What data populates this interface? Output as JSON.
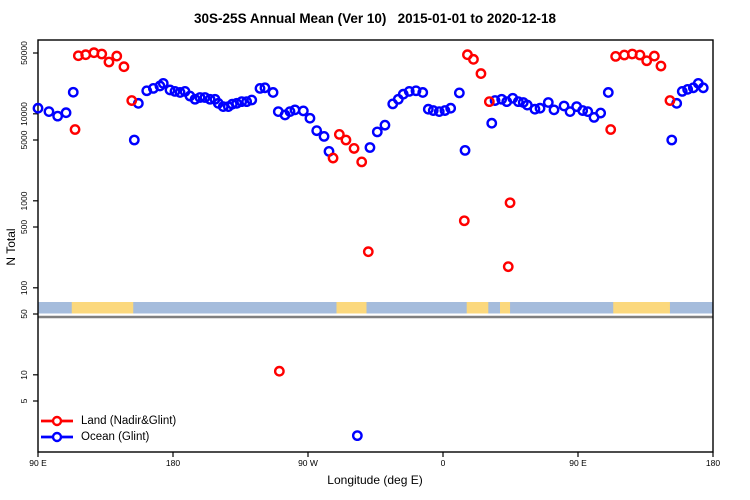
{
  "title": "30S-25S Annual Mean (Ver 10)   2015-01-01 to 2020-12-18",
  "axes": {
    "y_label": "N Total",
    "x_label": "Longitude (deg E)",
    "y_ticks": [
      {
        "value": 50000,
        "label": "50000"
      },
      {
        "value": 10000,
        "label": "10000"
      },
      {
        "value": 5000,
        "label": "5000"
      },
      {
        "value": 1000,
        "label": "1000"
      },
      {
        "value": 500,
        "label": "500"
      },
      {
        "value": 100,
        "label": "100"
      },
      {
        "value": 50,
        "label": "50"
      },
      {
        "value": 10,
        "label": "10"
      },
      {
        "value": 5,
        "label": "5"
      }
    ],
    "x_ticks": [
      {
        "lon": 90,
        "label": "90 E"
      },
      {
        "lon": 180,
        "label": "180"
      },
      {
        "lon": 270,
        "label": "90 W"
      },
      {
        "lon": 360,
        "label": "0"
      },
      {
        "lon": 450,
        "label": "90 E"
      },
      {
        "lon": 540,
        "label": "180"
      }
    ]
  },
  "legend": [
    {
      "label": "Land (Nadir&Glint)",
      "color": "#ff0000"
    },
    {
      "label": "Ocean (Glint)",
      "color": "#0000ff"
    }
  ],
  "colors": {
    "land_series": "#ff0000",
    "ocean_series": "#0000ff",
    "strip_ocean": "#a5bcdc",
    "strip_land": "#fbd87d",
    "divider_line": "#7f7f7f",
    "frame": "#000000"
  },
  "land_ocean_strip": {
    "description": "land/ocean mask along 30S-25S",
    "land_segments_deg_e": [
      [
        112.5,
        153.5
      ],
      [
        289,
        309
      ],
      [
        375.8,
        390.2
      ],
      [
        398,
        404.7
      ],
      [
        473.5,
        511.3
      ]
    ]
  },
  "chart_data": {
    "type": "scatter",
    "title": "30S-25S Annual Mean (Ver 10)   2015-01-01 to 2020-12-18",
    "xlabel": "Longitude (deg E)",
    "ylabel": "N Total",
    "x_range_deg_e": [
      90,
      540
    ],
    "y_scale": "log10",
    "y_range": [
      1.8,
      62000
    ],
    "grid": false,
    "legend_position": "bottom-left",
    "series": [
      {
        "name": "Land (Nadir&Glint)",
        "color": "#ff0000",
        "points": [
          [
            114.7,
            6600
          ],
          [
            116.9,
            46500
          ],
          [
            121.8,
            47800
          ],
          [
            127.3,
            50400
          ],
          [
            132.5,
            48700
          ],
          [
            137.3,
            39400
          ],
          [
            142.5,
            46100
          ],
          [
            147.3,
            34800
          ],
          [
            152.5,
            14200
          ],
          [
            250.9,
            11
          ],
          [
            286.7,
            3100
          ],
          [
            290.9,
            5800
          ],
          [
            295.3,
            5000
          ],
          [
            300.7,
            4000
          ],
          [
            305.8,
            2800
          ],
          [
            310.2,
            260
          ],
          [
            374.2,
            590
          ],
          [
            376.3,
            47800
          ],
          [
            380.3,
            42300
          ],
          [
            385.3,
            29000
          ],
          [
            390.9,
            13800
          ],
          [
            403.5,
            175
          ],
          [
            404.7,
            950
          ],
          [
            471.8,
            6600
          ],
          [
            475.1,
            45700
          ],
          [
            480.9,
            47400
          ],
          [
            486.2,
            48700
          ],
          [
            491.3,
            47400
          ],
          [
            495.8,
            40700
          ],
          [
            500.9,
            46100
          ],
          [
            505.3,
            35400
          ],
          [
            511.3,
            14200
          ]
        ]
      },
      {
        "name": "Ocean (Glint)",
        "color": "#0000ff",
        "points": [
          [
            90,
            11600
          ],
          [
            97.3,
            10600
          ],
          [
            103.1,
            9400
          ],
          [
            108.7,
            10300
          ],
          [
            113.5,
            17700
          ],
          [
            154.2,
            5000
          ],
          [
            156.9,
            13200
          ],
          [
            162.5,
            18400
          ],
          [
            166.9,
            19600
          ],
          [
            171.3,
            20900
          ],
          [
            173.5,
            22400
          ],
          [
            178,
            18800
          ],
          [
            181.3,
            18100
          ],
          [
            184.7,
            17600
          ],
          [
            188,
            18100
          ],
          [
            191.3,
            16000
          ],
          [
            194.7,
            14700
          ],
          [
            198,
            15400
          ],
          [
            201.3,
            15400
          ],
          [
            204.7,
            14700
          ],
          [
            208,
            14700
          ],
          [
            210.2,
            13200
          ],
          [
            213.5,
            12100
          ],
          [
            216.9,
            12100
          ],
          [
            219.5,
            12900
          ],
          [
            222.5,
            13200
          ],
          [
            225.8,
            13800
          ],
          [
            229.1,
            13800
          ],
          [
            232.5,
            14400
          ],
          [
            238,
            19600
          ],
          [
            241.3,
            19900
          ],
          [
            246.7,
            17600
          ],
          [
            250.2,
            10600
          ],
          [
            254.7,
            9700
          ],
          [
            258,
            10600
          ],
          [
            261.3,
            11100
          ],
          [
            266.9,
            10800
          ],
          [
            271.3,
            8900
          ],
          [
            275.8,
            6400
          ],
          [
            280.7,
            5500
          ],
          [
            284,
            3700
          ],
          [
            302.9,
            2
          ],
          [
            311.3,
            4100
          ],
          [
            316.2,
            6200
          ],
          [
            321.3,
            7400
          ],
          [
            326.5,
            13000
          ],
          [
            330.2,
            14700
          ],
          [
            333.5,
            16800
          ],
          [
            337.5,
            18100
          ],
          [
            342,
            18400
          ],
          [
            346.5,
            17600
          ],
          [
            350.2,
            11300
          ],
          [
            353.5,
            10900
          ],
          [
            357.5,
            10600
          ],
          [
            361.3,
            10900
          ],
          [
            365.1,
            11600
          ],
          [
            370.9,
            17400
          ],
          [
            374.7,
            3800
          ],
          [
            392.5,
            7800
          ],
          [
            394.7,
            14200
          ],
          [
            399.1,
            14700
          ],
          [
            402.5,
            13800
          ],
          [
            406.5,
            15100
          ],
          [
            410.2,
            13800
          ],
          [
            413.5,
            13500
          ],
          [
            416.2,
            12600
          ],
          [
            421.3,
            11300
          ],
          [
            424.7,
            11600
          ],
          [
            430.2,
            13500
          ],
          [
            434,
            11100
          ],
          [
            440.7,
            12300
          ],
          [
            444.7,
            10600
          ],
          [
            449.1,
            12100
          ],
          [
            453.1,
            10900
          ],
          [
            456.5,
            10600
          ],
          [
            460.7,
            9100
          ],
          [
            465.1,
            10200
          ],
          [
            470.2,
            17600
          ],
          [
            512.5,
            5000
          ],
          [
            515.8,
            13200
          ],
          [
            519.5,
            18100
          ],
          [
            523.1,
            19100
          ],
          [
            526.9,
            19900
          ],
          [
            530.2,
            22400
          ],
          [
            533.5,
            19900
          ]
        ]
      }
    ]
  }
}
